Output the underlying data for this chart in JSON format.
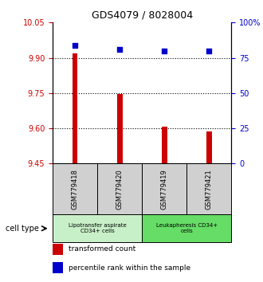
{
  "title": "GDS4079 / 8028004",
  "samples": [
    "GSM779418",
    "GSM779420",
    "GSM779419",
    "GSM779421"
  ],
  "bar_values": [
    9.92,
    9.745,
    9.608,
    9.585
  ],
  "bar_baseline": 9.45,
  "percentile_values": [
    84,
    81,
    80,
    80
  ],
  "left_ylim": [
    9.45,
    10.05
  ],
  "right_ylim": [
    0,
    100
  ],
  "left_yticks": [
    9.45,
    9.6,
    9.75,
    9.9,
    10.05
  ],
  "right_yticks": [
    0,
    25,
    50,
    75,
    100
  ],
  "right_yticklabels": [
    "0",
    "25",
    "50",
    "75",
    "100%"
  ],
  "dotted_lines": [
    9.9,
    9.75,
    9.6
  ],
  "bar_color": "#cc0000",
  "dot_color": "#0000cc",
  "group_labels": [
    "Lipotransfer aspirate\nCD34+ cells",
    "Leukapheresis CD34+\ncells"
  ],
  "group_colors_light": [
    "#c8f0c8",
    "#66dd66"
  ],
  "group_ranges": [
    [
      0,
      2
    ],
    [
      2,
      4
    ]
  ],
  "legend_bar_label": "transformed count",
  "legend_dot_label": "percentile rank within the sample",
  "bar_width": 0.12,
  "left_axis_color": "#cc0000",
  "right_axis_color": "#0000cc",
  "sample_box_color": "#d0d0d0"
}
